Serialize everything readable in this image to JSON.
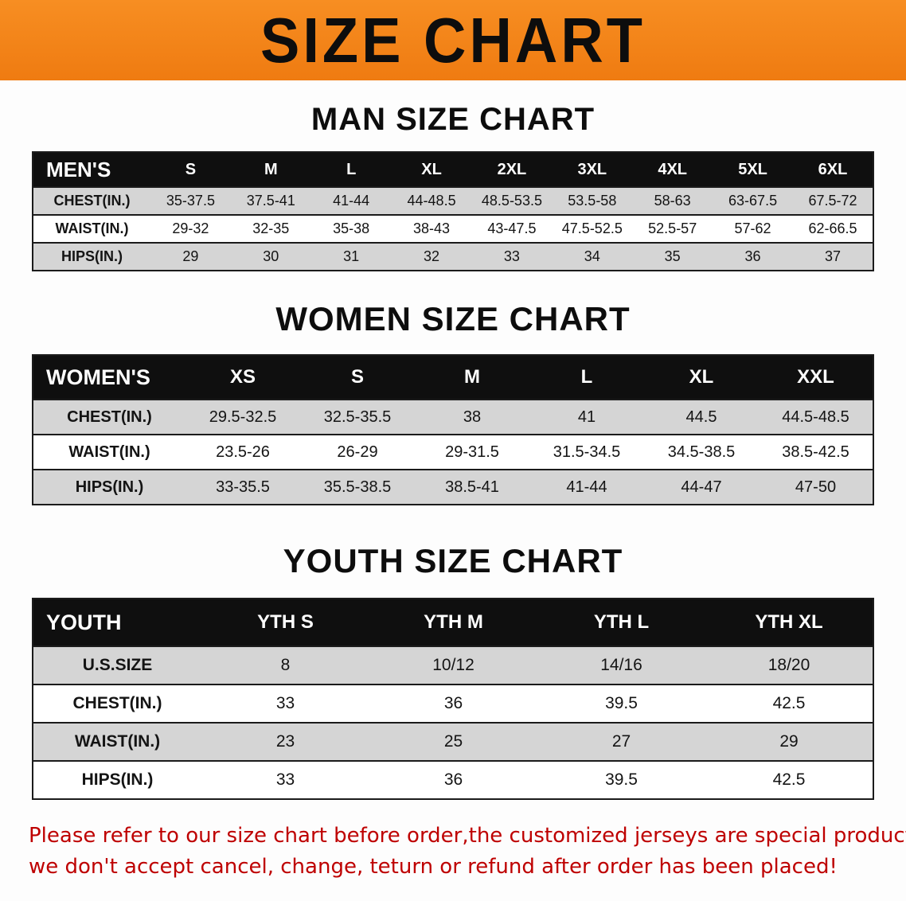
{
  "banner": {
    "title": "SIZE CHART",
    "bg_color": "#F5831D",
    "text_color": "#0D0D0D"
  },
  "sections": [
    {
      "id": "men",
      "heading": "MAN SIZE CHART",
      "table": {
        "header": [
          "MEN'S",
          "S",
          "M",
          "L",
          "XL",
          "2XL",
          "3XL",
          "4XL",
          "5XL",
          "6XL"
        ],
        "rows": [
          {
            "label": "CHEST(IN.)",
            "values": [
              "35-37.5",
              "37.5-41",
              "41-44",
              "44-48.5",
              "48.5-53.5",
              "53.5-58",
              "58-63",
              "63-67.5",
              "67.5-72"
            ]
          },
          {
            "label": "WAIST(IN.)",
            "values": [
              "29-32",
              "32-35",
              "35-38",
              "38-43",
              "43-47.5",
              "47.5-52.5",
              "52.5-57",
              "57-62",
              "62-66.5"
            ]
          },
          {
            "label": "HIPS(IN.)",
            "values": [
              "29",
              "30",
              "31",
              "32",
              "33",
              "34",
              "35",
              "36",
              "37"
            ]
          }
        ]
      }
    },
    {
      "id": "women",
      "heading": "WOMEN SIZE CHART",
      "table": {
        "header": [
          "WOMEN'S",
          "XS",
          "S",
          "M",
          "L",
          "XL",
          "XXL"
        ],
        "rows": [
          {
            "label": "CHEST(IN.)",
            "values": [
              "29.5-32.5",
              "32.5-35.5",
              "38",
              "41",
              "44.5",
              "44.5-48.5"
            ]
          },
          {
            "label": "WAIST(IN.)",
            "values": [
              "23.5-26",
              "26-29",
              "29-31.5",
              "31.5-34.5",
              "34.5-38.5",
              "38.5-42.5"
            ]
          },
          {
            "label": "HIPS(IN.)",
            "values": [
              "33-35.5",
              "35.5-38.5",
              "38.5-41",
              "41-44",
              "44-47",
              "47-50"
            ]
          }
        ]
      }
    },
    {
      "id": "youth",
      "heading": "YOUTH SIZE CHART",
      "table": {
        "header": [
          "YOUTH",
          "YTH S",
          "YTH M",
          "YTH L",
          "YTH XL"
        ],
        "rows": [
          {
            "label": "U.S.SIZE",
            "values": [
              "8",
              "10/12",
              "14/16",
              "18/20"
            ]
          },
          {
            "label": "CHEST(IN.)",
            "values": [
              "33",
              "36",
              "39.5",
              "42.5"
            ]
          },
          {
            "label": "WAIST(IN.)",
            "values": [
              "23",
              "25",
              "27",
              "29"
            ]
          },
          {
            "label": "HIPS(IN.)",
            "values": [
              "33",
              "36",
              "39.5",
              "42.5"
            ]
          }
        ]
      }
    }
  ],
  "disclaimer": {
    "lines": [
      "Please refer to our size chart before order,the customized jerseys are special products,",
      "we don't accept cancel, change, teturn or refund after order has been placed!"
    ],
    "color": "#BE0000"
  }
}
